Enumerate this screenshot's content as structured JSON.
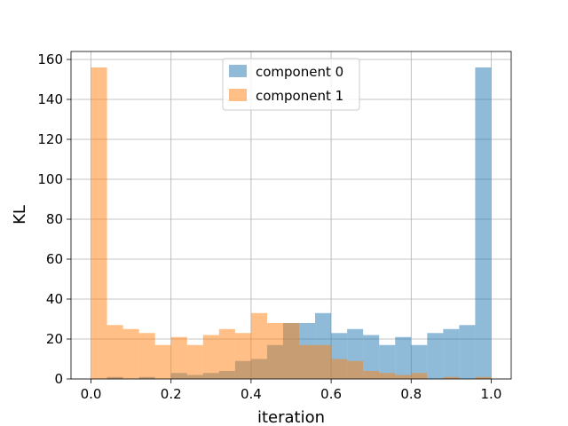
{
  "chart_data": {
    "type": "bar",
    "subtype": "overlapping-histogram",
    "title": "",
    "xlabel": "iteration",
    "ylabel": "KL",
    "xlim": [
      -0.05,
      1.05
    ],
    "ylim": [
      0,
      164
    ],
    "xticks": [
      "0.0",
      "0.2",
      "0.4",
      "0.6",
      "0.8",
      "1.0"
    ],
    "yticks": [
      "0",
      "20",
      "40",
      "60",
      "80",
      "100",
      "120",
      "140",
      "160"
    ],
    "grid": true,
    "legend_position": "top-center",
    "bin_edges": [
      0.0,
      0.04,
      0.08,
      0.12,
      0.16,
      0.2,
      0.24,
      0.28,
      0.32,
      0.36,
      0.4,
      0.44,
      0.48,
      0.52,
      0.56,
      0.6,
      0.64,
      0.68,
      0.72,
      0.76,
      0.8,
      0.84,
      0.88,
      0.92,
      0.96,
      1.0
    ],
    "series": [
      {
        "name": "component 0",
        "color": "#1f77b4",
        "alpha": 0.5,
        "values": [
          0,
          1,
          0,
          1,
          0,
          3,
          2,
          3,
          4,
          9,
          10,
          17,
          28,
          28,
          33,
          23,
          25,
          22,
          17,
          21,
          17,
          23,
          25,
          27,
          156
        ]
      },
      {
        "name": "component 1",
        "color": "#ff7f0e",
        "alpha": 0.5,
        "values": [
          156,
          27,
          25,
          23,
          17,
          21,
          17,
          22,
          25,
          23,
          33,
          28,
          28,
          17,
          17,
          10,
          9,
          4,
          3,
          2,
          3,
          0,
          1,
          0,
          1
        ]
      }
    ]
  }
}
